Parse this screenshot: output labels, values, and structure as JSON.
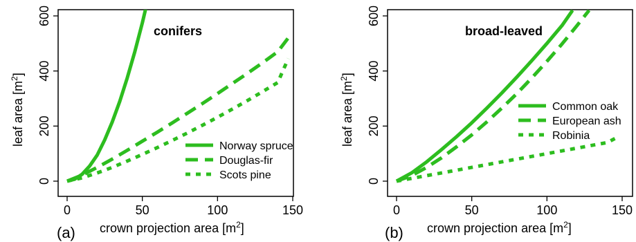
{
  "chart_data": [
    {
      "panel_label": "(a)",
      "type": "line",
      "title": "conifers",
      "xlabel": "crown projection area [m",
      "ylabel": "leaf area [m",
      "label_superscript": "2",
      "label_close": "]",
      "xlim": [
        0,
        150
      ],
      "ylim": [
        0,
        600
      ],
      "xticks": [
        "0",
        "50",
        "100",
        "150"
      ],
      "yticks": [
        "0",
        "200",
        "400",
        "600"
      ],
      "legend_position": "bottom-right",
      "color": "#2dbd1f",
      "series": [
        {
          "name": "Norway spruce",
          "dash": "solid",
          "x": [
            0,
            5,
            10,
            15,
            20,
            25,
            30,
            35,
            40,
            45,
            50,
            55
          ],
          "y": [
            0,
            7,
            25,
            55,
            95,
            150,
            215,
            290,
            375,
            470,
            575,
            690
          ]
        },
        {
          "name": "Douglas-fir",
          "dash": "dashed",
          "x": [
            0,
            10,
            20,
            30,
            40,
            50,
            60,
            70,
            80,
            90,
            100,
            110,
            120,
            130,
            140,
            147
          ],
          "y": [
            0,
            22,
            50,
            80,
            112,
            145,
            178,
            212,
            247,
            282,
            318,
            355,
            392,
            430,
            470,
            520
          ]
        },
        {
          "name": "Scots pine",
          "dash": "dotted",
          "x": [
            0,
            10,
            20,
            30,
            40,
            50,
            60,
            70,
            80,
            90,
            100,
            110,
            120,
            130,
            140,
            147
          ],
          "y": [
            0,
            12,
            30,
            50,
            73,
            97,
            122,
            148,
            175,
            203,
            232,
            262,
            293,
            325,
            358,
            445
          ]
        }
      ]
    },
    {
      "panel_label": "(b)",
      "type": "line",
      "title": "broad-leaved",
      "xlabel": "crown projection area [m",
      "ylabel": "leaf area [m",
      "label_superscript": "2",
      "label_close": "]",
      "xlim": [
        0,
        150
      ],
      "ylim": [
        0,
        600
      ],
      "xticks": [
        "0",
        "50",
        "100",
        "150"
      ],
      "yticks": [
        "0",
        "200",
        "400",
        "600"
      ],
      "legend_position": "middle-right",
      "color": "#2dbd1f",
      "series": [
        {
          "name": "Common oak",
          "dash": "solid",
          "x": [
            0,
            10,
            20,
            30,
            40,
            50,
            60,
            70,
            80,
            90,
            100,
            110,
            117
          ],
          "y": [
            0,
            30,
            70,
            115,
            162,
            212,
            265,
            320,
            378,
            438,
            500,
            565,
            620
          ]
        },
        {
          "name": "European ash",
          "dash": "dashed",
          "x": [
            0,
            10,
            20,
            30,
            40,
            50,
            60,
            70,
            80,
            90,
            100,
            110,
            120,
            128
          ],
          "y": [
            0,
            20,
            50,
            85,
            125,
            168,
            215,
            265,
            318,
            375,
            435,
            498,
            565,
            620
          ]
        },
        {
          "name": "Robinia",
          "dash": "dotted",
          "x": [
            0,
            10,
            20,
            30,
            40,
            50,
            60,
            70,
            80,
            90,
            100,
            110,
            120,
            130,
            140,
            147
          ],
          "y": [
            0,
            10,
            20,
            30,
            40,
            50,
            60,
            70,
            80,
            90,
            100,
            110,
            120,
            130,
            140,
            160
          ]
        }
      ]
    }
  ]
}
